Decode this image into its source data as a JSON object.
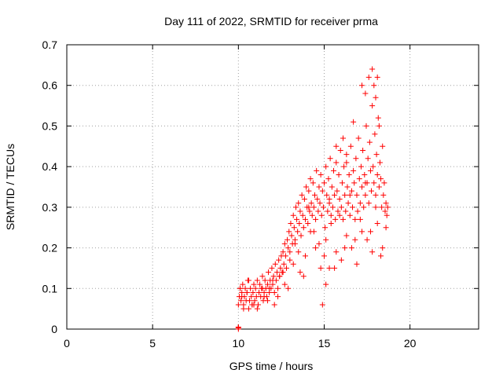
{
  "chart_data": {
    "type": "scatter",
    "title": "Day 111 of 2022, SRMTID for receiver prma",
    "xlabel": "GPS time / hours",
    "ylabel": "SRMTID / TECUs",
    "xlim": [
      0,
      24
    ],
    "ylim": [
      0,
      0.7
    ],
    "xticks": [
      0,
      5,
      10,
      15,
      20
    ],
    "yticks": [
      0,
      0.1,
      0.2,
      0.3,
      0.4,
      0.5,
      0.6,
      0.7
    ],
    "xtick_labels": [
      "0",
      "5",
      "10",
      "15",
      "20"
    ],
    "ytick_labels": [
      "0",
      "0.1",
      "0.2",
      "0.3",
      "0.4",
      "0.5",
      "0.6",
      "0.7"
    ],
    "grid": true,
    "marker": "+",
    "series": [
      {
        "name": "SRMTID",
        "color": "#ff0000",
        "x": [
          10.0,
          10.05,
          10.1,
          10.15,
          10.2,
          10.25,
          10.3,
          10.35,
          10.4,
          10.45,
          10.5,
          10.55,
          10.6,
          10.65,
          10.7,
          10.75,
          10.8,
          10.85,
          10.9,
          10.95,
          11.0,
          11.05,
          11.1,
          11.15,
          11.2,
          11.25,
          11.3,
          11.35,
          11.4,
          11.45,
          11.5,
          11.55,
          11.6,
          11.65,
          11.7,
          11.75,
          11.8,
          11.85,
          11.9,
          11.95,
          12.0,
          12.05,
          12.1,
          12.15,
          12.2,
          12.25,
          12.3,
          12.35,
          12.4,
          12.45,
          12.5,
          12.55,
          12.6,
          12.65,
          12.7,
          12.75,
          12.8,
          12.85,
          12.9,
          12.95,
          13.0,
          13.05,
          13.1,
          13.15,
          13.2,
          13.25,
          13.3,
          13.35,
          13.4,
          13.45,
          13.5,
          13.55,
          13.6,
          13.65,
          13.7,
          13.75,
          13.8,
          13.85,
          13.9,
          13.95,
          14.0,
          14.05,
          14.1,
          14.15,
          14.2,
          14.25,
          14.3,
          14.35,
          14.4,
          14.45,
          14.5,
          14.55,
          14.6,
          14.65,
          14.7,
          14.75,
          14.8,
          14.85,
          14.9,
          14.95,
          15.0,
          15.05,
          15.1,
          15.15,
          15.2,
          15.25,
          15.3,
          15.35,
          15.4,
          15.45,
          15.5,
          15.55,
          15.6,
          15.65,
          15.7,
          15.75,
          15.8,
          15.85,
          15.9,
          15.95,
          16.0,
          16.05,
          16.1,
          16.15,
          16.2,
          16.25,
          16.3,
          16.35,
          16.4,
          16.45,
          16.5,
          16.55,
          16.6,
          16.65,
          16.7,
          16.75,
          16.8,
          16.85,
          16.9,
          16.95,
          17.0,
          17.05,
          17.1,
          17.15,
          17.2,
          17.25,
          17.3,
          17.35,
          17.4,
          17.45,
          17.5,
          17.55,
          17.6,
          17.65,
          17.7,
          17.75,
          17.8,
          17.85,
          17.9,
          17.95,
          18.0,
          18.05,
          18.1,
          18.15,
          18.2,
          18.25,
          18.3,
          18.35,
          18.4,
          18.45,
          18.5,
          18.55,
          18.6,
          18.65,
          18.7,
          10.1,
          10.3,
          10.6,
          10.9,
          11.2,
          11.5,
          11.8,
          12.1,
          12.4,
          12.7,
          13.0,
          13.3,
          13.6,
          13.9,
          14.2,
          14.5,
          14.8,
          15.1,
          15.4,
          15.7,
          16.0,
          16.3,
          16.6,
          16.9,
          17.2,
          17.5,
          17.8,
          18.1,
          18.4,
          10.2,
          10.5,
          10.8,
          11.1,
          11.4,
          11.7,
          12.0,
          12.3,
          12.6,
          12.9,
          13.2,
          13.5,
          13.8,
          14.1,
          14.4,
          14.7,
          15.0,
          15.3,
          15.6,
          15.9,
          16.2,
          16.5,
          16.8,
          17.1,
          17.4,
          17.7,
          18.0,
          18.3,
          18.6,
          10.0,
          10.0,
          10.0,
          14.9,
          15.1,
          15.3,
          15.7,
          16.1,
          16.3,
          16.7,
          17.2,
          17.4,
          17.6,
          17.8,
          17.9,
          18.0,
          18.1,
          18.2
        ],
        "y": [
          0.06,
          0.08,
          0.1,
          0.07,
          0.09,
          0.11,
          0.06,
          0.08,
          0.1,
          0.07,
          0.09,
          0.12,
          0.05,
          0.07,
          0.1,
          0.08,
          0.06,
          0.09,
          0.11,
          0.07,
          0.1,
          0.08,
          0.12,
          0.06,
          0.09,
          0.11,
          0.08,
          0.1,
          0.13,
          0.07,
          0.09,
          0.12,
          0.1,
          0.08,
          0.11,
          0.14,
          0.09,
          0.12,
          0.1,
          0.15,
          0.11,
          0.13,
          0.09,
          0.16,
          0.12,
          0.14,
          0.1,
          0.17,
          0.13,
          0.15,
          0.18,
          0.14,
          0.19,
          0.16,
          0.21,
          0.18,
          0.15,
          0.22,
          0.2,
          0.24,
          0.19,
          0.26,
          0.23,
          0.21,
          0.28,
          0.25,
          0.22,
          0.3,
          0.27,
          0.24,
          0.31,
          0.26,
          0.29,
          0.23,
          0.33,
          0.28,
          0.25,
          0.32,
          0.27,
          0.35,
          0.3,
          0.26,
          0.34,
          0.29,
          0.37,
          0.31,
          0.28,
          0.36,
          0.3,
          0.33,
          0.27,
          0.39,
          0.32,
          0.29,
          0.35,
          0.31,
          0.38,
          0.28,
          0.34,
          0.3,
          0.36,
          0.25,
          0.4,
          0.33,
          0.29,
          0.37,
          0.31,
          0.42,
          0.28,
          0.35,
          0.3,
          0.39,
          0.33,
          0.27,
          0.41,
          0.34,
          0.29,
          0.38,
          0.32,
          0.44,
          0.3,
          0.36,
          0.27,
          0.4,
          0.33,
          0.29,
          0.43,
          0.35,
          0.31,
          0.38,
          0.28,
          0.45,
          0.34,
          0.3,
          0.39,
          0.36,
          0.27,
          0.42,
          0.33,
          0.29,
          0.47,
          0.37,
          0.31,
          0.4,
          0.35,
          0.44,
          0.3,
          0.38,
          0.33,
          0.5,
          0.36,
          0.42,
          0.31,
          0.46,
          0.39,
          0.34,
          0.55,
          0.4,
          0.36,
          0.48,
          0.33,
          0.43,
          0.38,
          0.52,
          0.35,
          0.41,
          0.37,
          0.3,
          0.45,
          0.33,
          0.36,
          0.29,
          0.31,
          0.28,
          0.3,
          0.1,
          0.05,
          0.12,
          0.06,
          0.09,
          0.08,
          0.1,
          0.06,
          0.13,
          0.11,
          0.17,
          0.21,
          0.14,
          0.18,
          0.24,
          0.2,
          0.15,
          0.22,
          0.26,
          0.19,
          0.17,
          0.23,
          0.2,
          0.16,
          0.24,
          0.22,
          0.19,
          0.26,
          0.2,
          0.08,
          0.09,
          0.06,
          0.05,
          0.1,
          0.07,
          0.12,
          0.08,
          0.14,
          0.1,
          0.16,
          0.19,
          0.13,
          0.3,
          0.24,
          0.21,
          0.18,
          0.32,
          0.15,
          0.28,
          0.2,
          0.33,
          0.22,
          0.27,
          0.36,
          0.24,
          0.3,
          0.18,
          0.25,
          0.0,
          0.003,
          0.005,
          0.06,
          0.11,
          0.15,
          0.45,
          0.47,
          0.41,
          0.51,
          0.6,
          0.58,
          0.62,
          0.64,
          0.6,
          0.57,
          0.62,
          0.5
        ]
      }
    ]
  }
}
